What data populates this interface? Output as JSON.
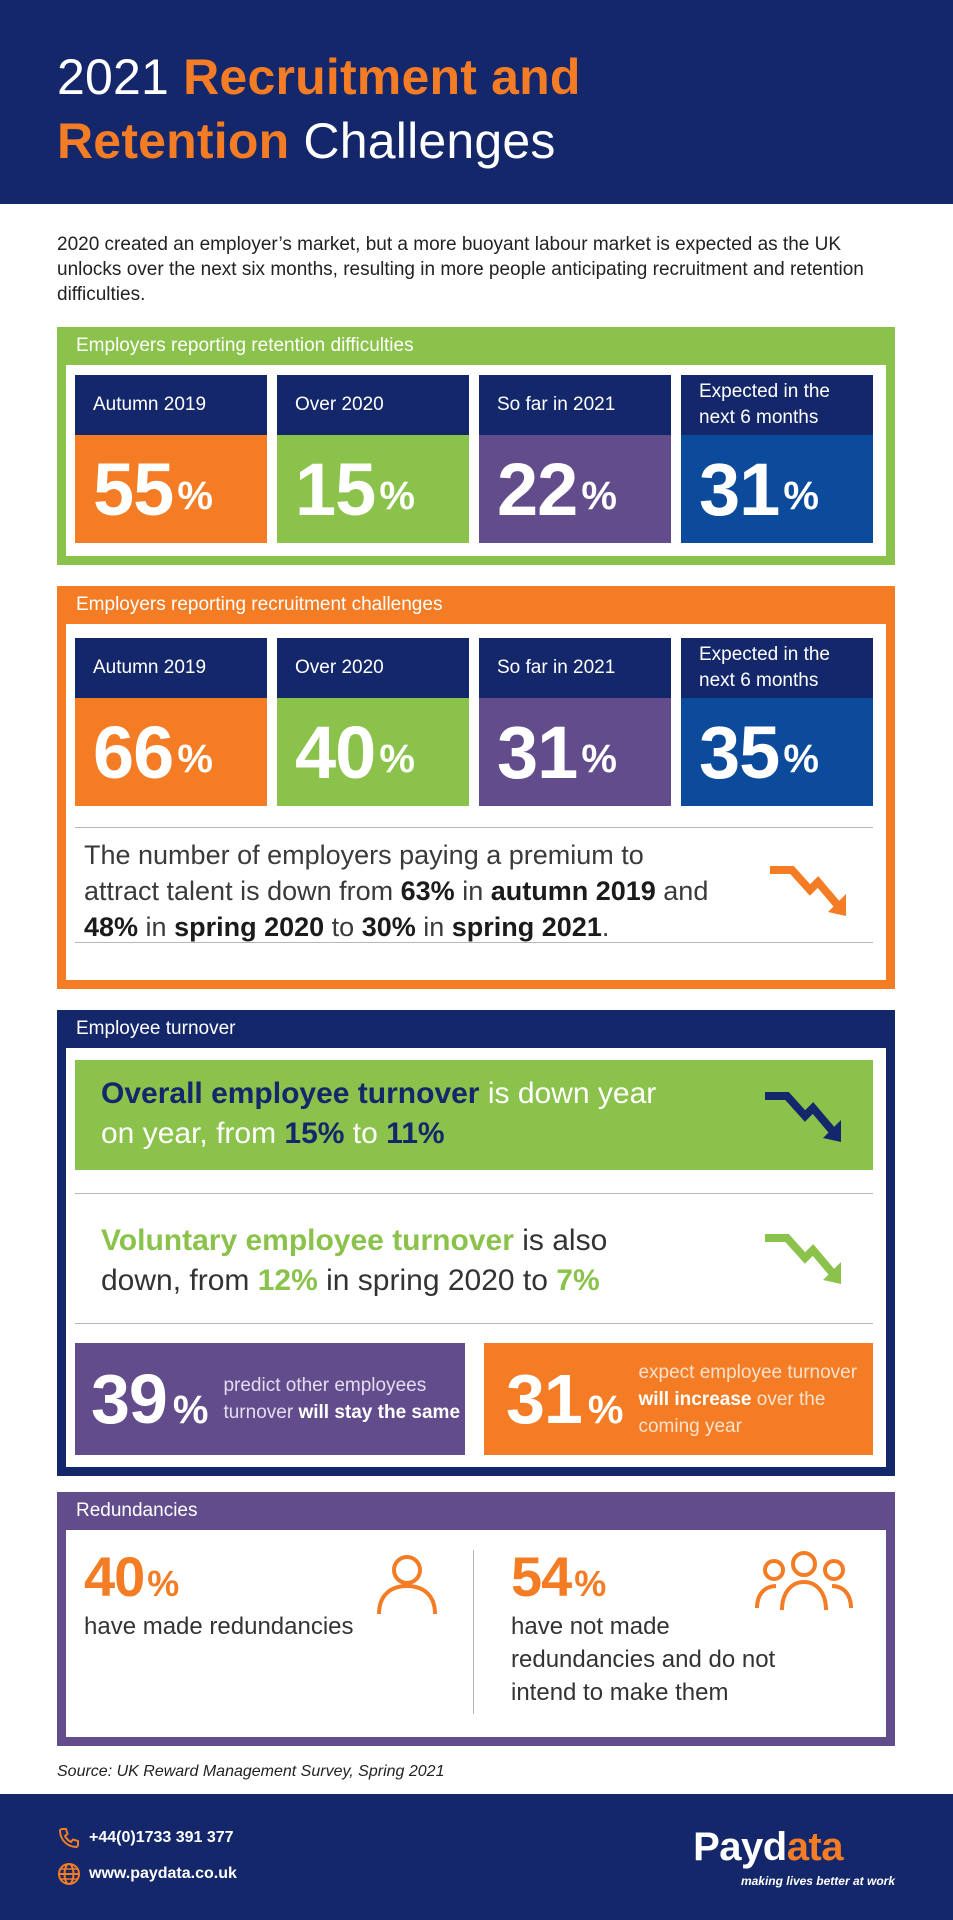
{
  "header": {
    "title_pre": "2021 ",
    "title_accent1": "Recruitment and",
    "title_accent2": "Retention",
    "title_post": " Challenges"
  },
  "intro": "2020 created an employer’s market, but a more buoyant labour market is expected as the UK unlocks over the next six months, resulting in more people anticipating recruitment and retention difficulties.",
  "retention": {
    "label": "Employers reporting retention difficulties",
    "cards": [
      {
        "period": "Autumn 2019",
        "value": "55",
        "unit": "%"
      },
      {
        "period": "Over 2020",
        "value": "15",
        "unit": "%"
      },
      {
        "period": "So far in 2021",
        "value": "22",
        "unit": "%"
      },
      {
        "period": "Expected in the next 6 months",
        "value": "31",
        "unit": "%"
      }
    ]
  },
  "recruitment": {
    "label": "Employers reporting recruitment challenges",
    "cards": [
      {
        "period": "Autumn 2019",
        "value": "66",
        "unit": "%"
      },
      {
        "period": "Over 2020",
        "value": "40",
        "unit": "%"
      },
      {
        "period": "So far in 2021",
        "value": "31",
        "unit": "%"
      },
      {
        "period": "Expected in the next 6 months",
        "value": "35",
        "unit": "%"
      }
    ],
    "premium": {
      "t1": "The number of employers paying a premium to attract talent is down from ",
      "b1": "63%",
      "t2": " in ",
      "b2": "autumn 2019",
      "t3": " and ",
      "b3": "48%",
      "t4": " in ",
      "b4": "spring 2020",
      "t5": " to ",
      "b5": "30%",
      "t6": " in ",
      "b6": "spring 2021",
      "t7": "."
    }
  },
  "turnover": {
    "label": "Employee turnover",
    "overall": {
      "b1": "Overall employee turnover",
      "t1": " is down year on year, from ",
      "b2": "15%",
      "t2": " to ",
      "b3": "11%"
    },
    "voluntary": {
      "b1": "Voluntary employee turnover",
      "t1": " is also down, from ",
      "b2": "12%",
      "t2": " in spring 2020 to ",
      "b3": "7%"
    },
    "same": {
      "value": "39",
      "unit": "%",
      "t1": "predict other employees turnover ",
      "b1": "will stay the same"
    },
    "increase": {
      "value": "31",
      "unit": "%",
      "t1": "expect employee turnover ",
      "b1": "will increase",
      "t2": " over the coming year"
    }
  },
  "redundancies": {
    "label": "Redundancies",
    "made": {
      "value": "40",
      "unit": "%",
      "desc": "have made redundancies"
    },
    "not_made": {
      "value": "54",
      "unit": "%",
      "desc": "have not made redundancies and do not intend to make them"
    }
  },
  "source": "Source: UK Reward Management Survey, Spring 2021",
  "footer": {
    "phone": "+44(0)1733 391 377",
    "website": "www.paydata.co.uk",
    "logo_main": "Payd",
    "logo_accent": "ata",
    "tagline": "making lives better at work"
  },
  "colors": {
    "navy": "#13276a",
    "orange": "#f47c24",
    "green": "#8bc24b",
    "purple": "#624c8c",
    "blue": "#0c4a9c"
  },
  "icons": {
    "retention_arrow": "trend-down-icon",
    "person": "person-icon",
    "group": "group-icon",
    "phone": "phone-icon",
    "globe": "globe-icon"
  }
}
